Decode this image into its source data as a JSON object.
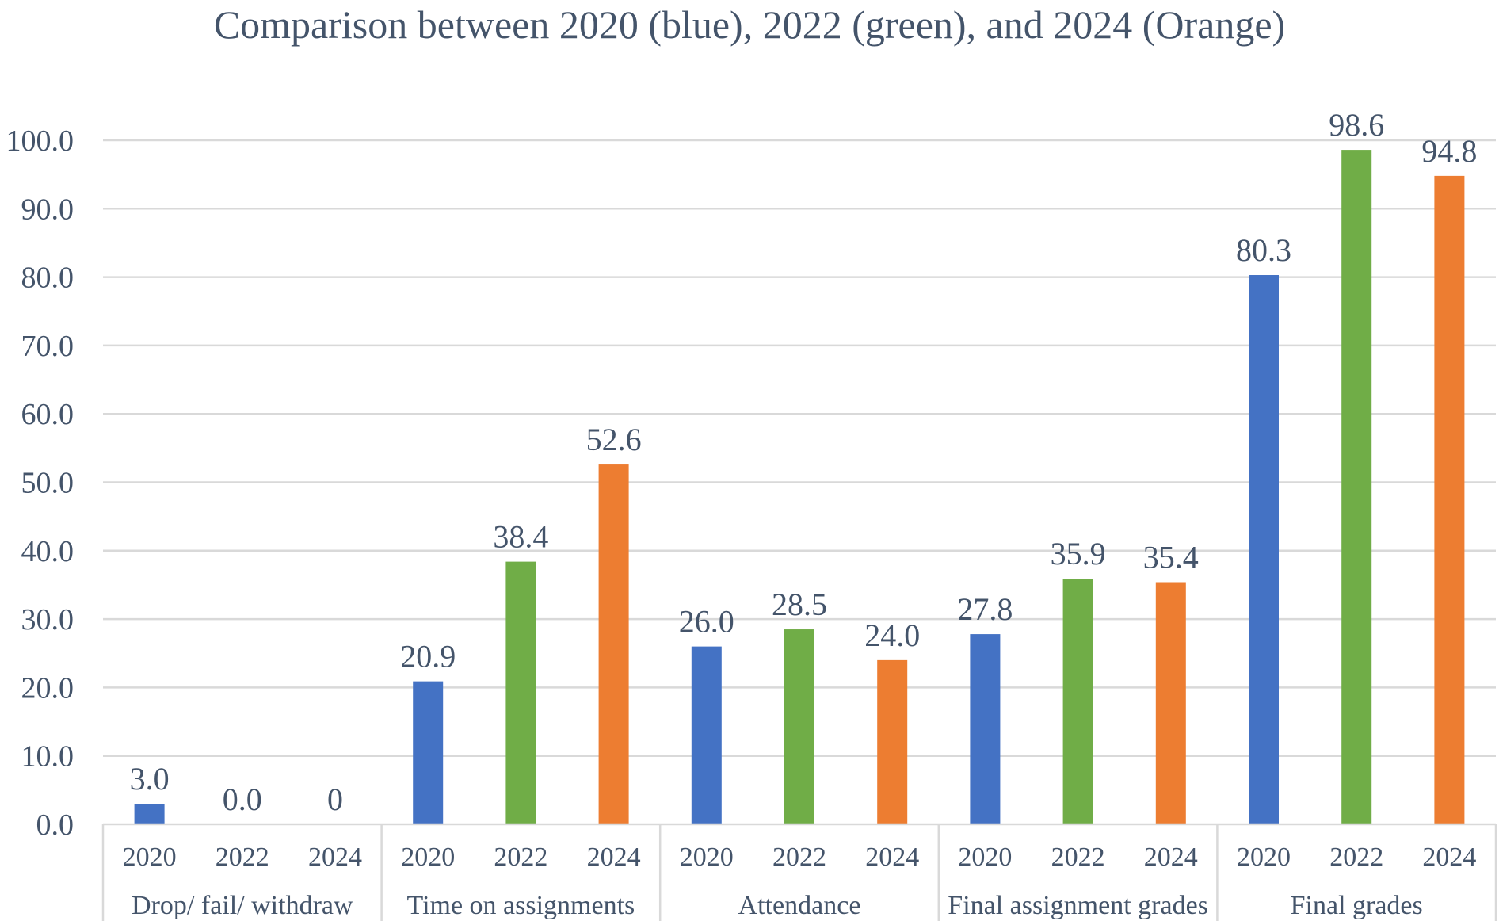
{
  "chart_data": {
    "type": "bar",
    "title": "Comparison between 2020 (blue),  2022 (green), and 2024 (Orange)",
    "xlabel": "",
    "ylabel": "",
    "ylim": [
      0,
      100
    ],
    "yticks": [
      "0.0",
      "10.0",
      "20.0",
      "30.0",
      "40.0",
      "50.0",
      "60.0",
      "70.0",
      "80.0",
      "90.0",
      "100.0"
    ],
    "grid": true,
    "legend": "none",
    "groups": [
      {
        "name": "Drop/ fail/ withdraw",
        "bars": [
          {
            "year": "2020",
            "value": 3.0,
            "label": "3.0",
            "color": "#4472c4"
          },
          {
            "year": "2022",
            "value": 0.0,
            "label": "0.0",
            "color": "#70ad47"
          },
          {
            "year": "2024",
            "value": 0,
            "label": "0",
            "color": "#ed7d31"
          }
        ]
      },
      {
        "name": "Time on assignments",
        "bars": [
          {
            "year": "2020",
            "value": 20.9,
            "label": "20.9",
            "color": "#4472c4"
          },
          {
            "year": "2022",
            "value": 38.4,
            "label": "38.4",
            "color": "#70ad47"
          },
          {
            "year": "2024",
            "value": 52.6,
            "label": "52.6",
            "color": "#ed7d31"
          }
        ]
      },
      {
        "name": "Attendance",
        "bars": [
          {
            "year": "2020",
            "value": 26.0,
            "label": "26.0",
            "color": "#4472c4"
          },
          {
            "year": "2022",
            "value": 28.5,
            "label": "28.5",
            "color": "#70ad47"
          },
          {
            "year": "2024",
            "value": 24.0,
            "label": "24.0",
            "color": "#ed7d31"
          }
        ]
      },
      {
        "name": "Final assignment grades",
        "bars": [
          {
            "year": "2020",
            "value": 27.8,
            "label": "27.8",
            "color": "#4472c4"
          },
          {
            "year": "2022",
            "value": 35.9,
            "label": "35.9",
            "color": "#70ad47"
          },
          {
            "year": "2024",
            "value": 35.4,
            "label": "35.4",
            "color": "#ed7d31"
          }
        ]
      },
      {
        "name": "Final grades",
        "bars": [
          {
            "year": "2020",
            "value": 80.3,
            "label": "80.3",
            "color": "#4472c4"
          },
          {
            "year": "2022",
            "value": 98.6,
            "label": "98.6",
            "color": "#70ad47"
          },
          {
            "year": "2024",
            "value": 94.8,
            "label": "94.8",
            "color": "#ed7d31"
          }
        ]
      }
    ]
  }
}
